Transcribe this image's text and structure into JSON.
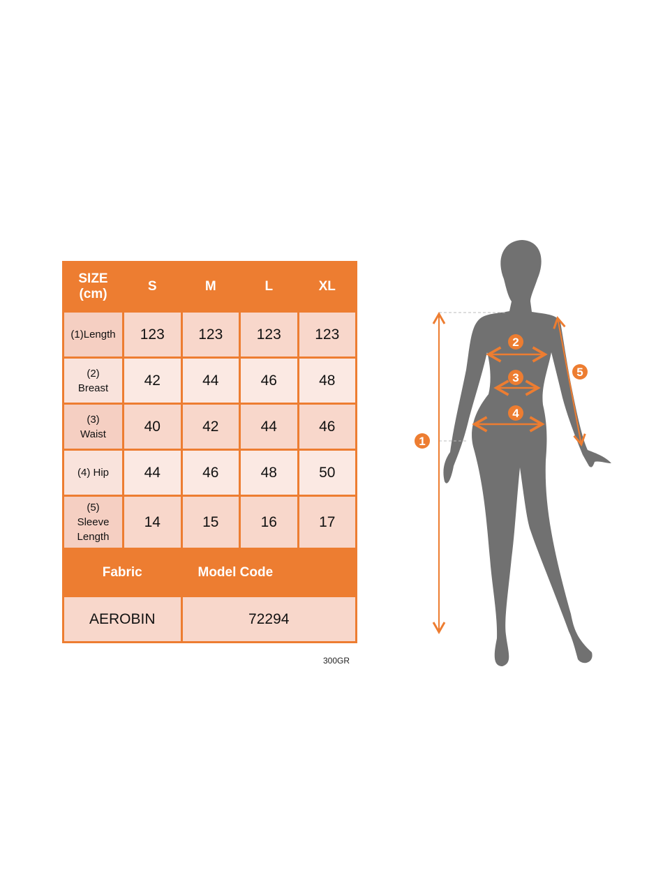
{
  "table": {
    "header": [
      "SIZE (cm)",
      "S",
      "M",
      "L",
      "XL"
    ],
    "rows": [
      {
        "label": "(1)Length",
        "values": [
          "123",
          "123",
          "123",
          "123"
        ]
      },
      {
        "label": "(2) Breast",
        "values": [
          "42",
          "44",
          "46",
          "48"
        ]
      },
      {
        "label": "(3) Waist",
        "values": [
          "40",
          "42",
          "44",
          "46"
        ]
      },
      {
        "label": "(4) Hip",
        "values": [
          "44",
          "46",
          "48",
          "50"
        ]
      },
      {
        "label": "(5) Sleeve Length",
        "values": [
          "14",
          "15",
          "16",
          "17"
        ]
      }
    ],
    "fabric_label": "Fabric",
    "model_code_label": "Model Code",
    "fabric_value": "AEROBIN",
    "model_code_value": "72294"
  },
  "note": "300GR",
  "figure": {
    "markers": [
      "1",
      "2",
      "3",
      "4",
      "5"
    ],
    "accent_color": "#ed7d31",
    "silhouette_color": "#717171"
  }
}
